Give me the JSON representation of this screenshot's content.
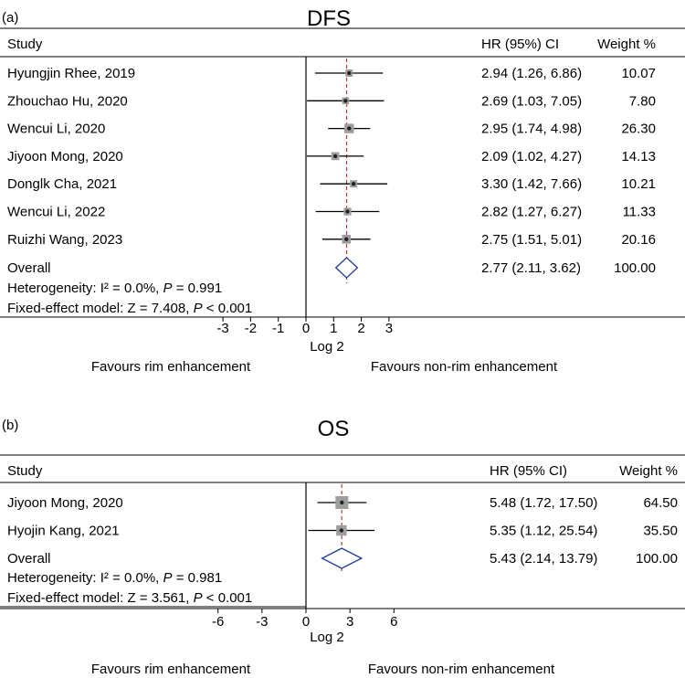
{
  "chart_data": [
    {
      "type": "forest",
      "panel_label": "(a)",
      "title": "DFS",
      "header": {
        "study": "Study",
        "estimate": "HR (95%) CI",
        "weight": "Weight %"
      },
      "rows": [
        {
          "study": "Hyungjin Rhee, 2019",
          "est": 1.56,
          "lo": 0.33,
          "hi": 2.78,
          "ci_text": "2.94 (1.26, 6.86)",
          "weight": "10.07"
        },
        {
          "study": "Zhouchao Hu, 2020",
          "est": 1.43,
          "lo": 0.04,
          "hi": 2.82,
          "ci_text": "2.69 (1.03, 7.05)",
          "weight": "7.80"
        },
        {
          "study": "Wencui Li, 2020",
          "est": 1.56,
          "lo": 0.8,
          "hi": 2.32,
          "ci_text": "2.95 (1.74, 4.98)",
          "weight": "26.30"
        },
        {
          "study": "Jiyoon Mong, 2020",
          "est": 1.06,
          "lo": 0.03,
          "hi": 2.09,
          "ci_text": "2.09 (1.02, 4.27)",
          "weight": "14.13"
        },
        {
          "study": "Donglk Cha, 2021",
          "est": 1.72,
          "lo": 0.51,
          "hi": 2.94,
          "ci_text": "3.30 (1.42, 7.66)",
          "weight": "10.21"
        },
        {
          "study": "Wencui Li, 2022",
          "est": 1.5,
          "lo": 0.35,
          "hi": 2.65,
          "ci_text": "2.82 (1.27, 6.27)",
          "weight": "11.33"
        },
        {
          "study": "Ruizhi Wang, 2023",
          "est": 1.46,
          "lo": 0.59,
          "hi": 2.33,
          "ci_text": "2.75 (1.51, 5.01)",
          "weight": "20.16"
        }
      ],
      "overall": {
        "label": "Overall",
        "est": 1.47,
        "lo": 1.08,
        "hi": 1.86,
        "ci_text": "2.77 (2.11, 3.62)",
        "weight": "100.00"
      },
      "heterogeneity": {
        "prefix": "Heterogeneity: I² = 0.0%, ",
        "p_label": "P",
        "p_value": " = 0.991"
      },
      "model": {
        "prefix": "Fixed-effect model: Z = 7.408, ",
        "p_label": "P",
        "p_value": " < 0.001"
      },
      "x_ticks": [
        "-3",
        "-2",
        "-1",
        "0",
        "1",
        "2",
        "3"
      ],
      "x_tick_values": [
        -3,
        -2,
        -1,
        0,
        1,
        2,
        3
      ],
      "xlabel": "Log 2",
      "favours_left": "Favours rim enhancement",
      "favours_right": "Favours non-rim enhancement"
    },
    {
      "type": "forest",
      "panel_label": "(b)",
      "title": "OS",
      "header": {
        "study": "Study",
        "estimate": "HR (95% CI)",
        "weight": "Weight %"
      },
      "rows": [
        {
          "study": "Jiyoon Mong, 2020",
          "est": 2.45,
          "lo": 0.78,
          "hi": 4.13,
          "ci_text": "5.48 (1.72, 17.50)",
          "weight": "64.50"
        },
        {
          "study": "Hyojin Kang, 2021",
          "est": 2.42,
          "lo": 0.16,
          "hi": 4.68,
          "ci_text": "5.35 (1.12, 25.54)",
          "weight": "35.50"
        }
      ],
      "overall": {
        "label": "Overall",
        "est": 2.44,
        "lo": 1.1,
        "hi": 3.79,
        "ci_text": "5.43 (2.14, 13.79)",
        "weight": "100.00"
      },
      "heterogeneity": {
        "prefix": "Heterogeneity: I² = 0.0%, ",
        "p_label": "P",
        "p_value": " = 0.981"
      },
      "model": {
        "prefix": "Fixed-effect model: Z = 3.561, ",
        "p_label": "P",
        "p_value": " < 0.001"
      },
      "x_ticks": [
        "-6",
        "-3",
        "0",
        "3",
        "6"
      ],
      "x_tick_values": [
        -6,
        -3,
        0,
        3,
        6
      ],
      "xlabel": "Log 2",
      "favours_left": "Favours rim enhancement",
      "favours_right": "Favours non-rim enhancement"
    }
  ]
}
